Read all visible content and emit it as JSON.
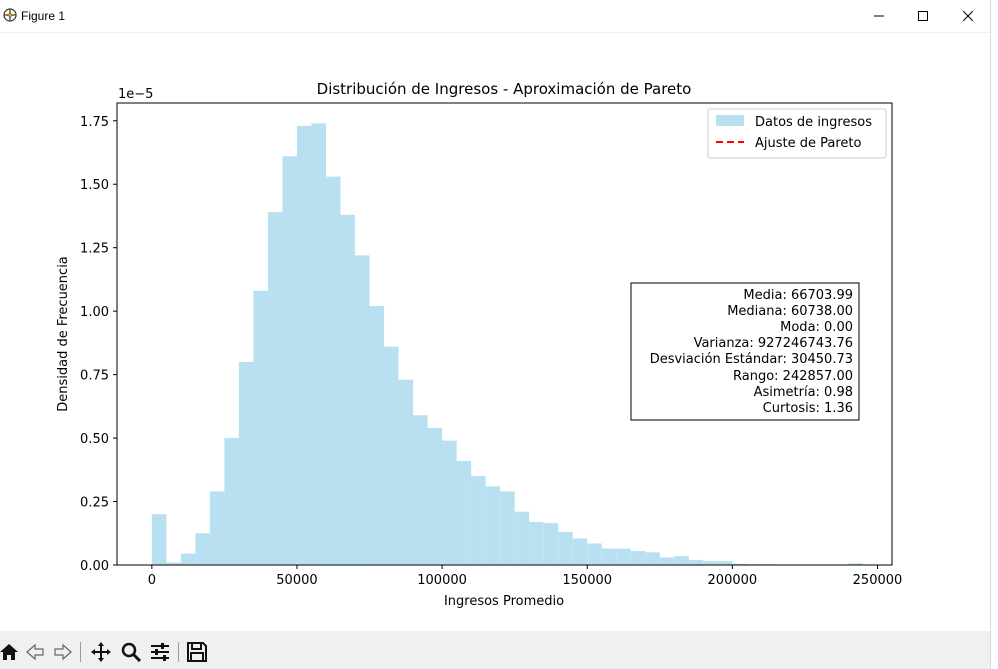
{
  "window": {
    "title": "Figure 1"
  },
  "colors": {
    "bars": "#b8e0f1",
    "fit_line": "#ff0000",
    "axes": "#000000"
  },
  "toolbar": {
    "icons": [
      "home-icon",
      "back-arrow-icon",
      "forward-arrow-icon",
      "pan-icon",
      "zoom-icon",
      "configure-subplots-icon",
      "save-icon"
    ]
  },
  "chart_data": {
    "type": "bar",
    "title": "Distribución de Ingresos - Aproximación de Pareto",
    "xlabel": "Ingresos Promedio",
    "ylabel": "Densidad de Frecuencia",
    "y_offset_label": "1e−5",
    "xlim": [
      -12000,
      255000
    ],
    "ylim": [
      0,
      1.82
    ],
    "y_scale_note": "values in units of 1e-5",
    "bin_width": 5000,
    "bin_start": 0,
    "values": [
      0.2,
      0.01,
      0.045,
      0.125,
      0.29,
      0.5,
      0.8,
      1.08,
      1.39,
      1.61,
      1.73,
      1.74,
      1.53,
      1.38,
      1.22,
      1.02,
      0.86,
      0.73,
      0.59,
      0.54,
      0.49,
      0.41,
      0.35,
      0.31,
      0.29,
      0.21,
      0.17,
      0.165,
      0.13,
      0.105,
      0.085,
      0.065,
      0.065,
      0.055,
      0.05,
      0.03,
      0.035,
      0.02,
      0.015,
      0.015,
      0.005,
      0.003,
      0.003,
      0.0,
      0.0,
      0.0,
      0.0,
      0.0,
      0.006
    ],
    "xticks": [
      0,
      50000,
      100000,
      150000,
      200000,
      250000
    ],
    "xtick_labels": [
      "0",
      "50000",
      "100000",
      "150000",
      "200000",
      "250000"
    ],
    "yticks": [
      0,
      0.25,
      0.5,
      0.75,
      1.0,
      1.25,
      1.5,
      1.75
    ],
    "ytick_labels": [
      "0.00",
      "0.25",
      "0.50",
      "0.75",
      "1.00",
      "1.25",
      "1.50",
      "1.75"
    ],
    "legend": {
      "position": "top-right",
      "entries": [
        {
          "label": "Datos de ingresos",
          "kind": "patch"
        },
        {
          "label": "Ajuste de Pareto",
          "kind": "dashed-line"
        }
      ]
    },
    "stats_box": [
      "Media: 66703.99",
      "Mediana: 60738.00",
      "Moda: 0.00",
      "Varianza: 927246743.76",
      "Desviación Estándar: 30450.73",
      "Rango: 242857.00",
      "Asimetría: 0.98",
      "Curtosis: 1.36"
    ],
    "grid": false
  }
}
